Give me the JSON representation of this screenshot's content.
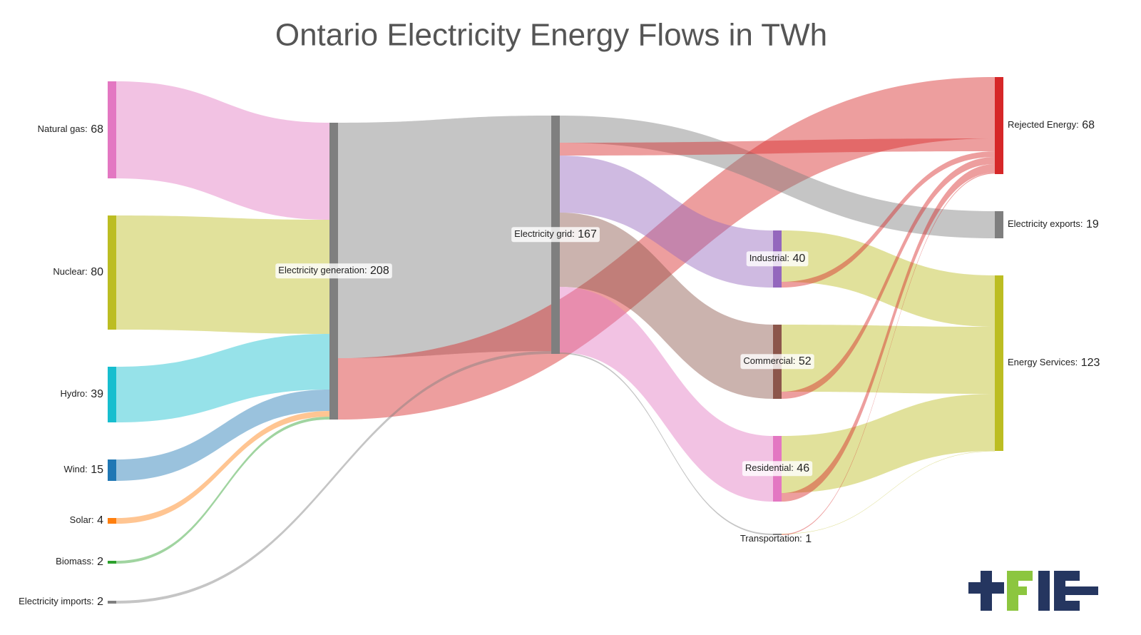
{
  "chart_data": {
    "type": "sankey",
    "title": "Ontario Electricity Energy Flows in TWh",
    "nodes": [
      {
        "label": "Natural gas:",
        "value": 68,
        "color": "#e377c2"
      },
      {
        "label": "Nuclear:",
        "value": 80,
        "color": "#bcbd22"
      },
      {
        "label": "Hydro:",
        "value": 39,
        "color": "#17becf"
      },
      {
        "label": "Wind:",
        "value": 15,
        "color": "#1f77b4"
      },
      {
        "label": "Solar:",
        "value": 4,
        "color": "#ff7f0e"
      },
      {
        "label": "Biomass:",
        "value": 2,
        "color": "#2ca02c"
      },
      {
        "label": "Electricity imports:",
        "value": 2,
        "color": "#7f7f7f"
      },
      {
        "label": "Electricity generation:",
        "value": 208,
        "color": "#7f7f7f"
      },
      {
        "label": "Electricity grid:",
        "value": 167,
        "color": "#7f7f7f"
      },
      {
        "label": "Industrial:",
        "value": 40,
        "color": "#9467bd"
      },
      {
        "label": "Commercial:",
        "value": 52,
        "color": "#8c564b"
      },
      {
        "label": "Residential:",
        "value": 46,
        "color": "#e377c2"
      },
      {
        "label": "Transportation:",
        "value": 1,
        "color": "#7f7f7f"
      },
      {
        "label": "Rejected Energy:",
        "value": 68,
        "color": "#d62728"
      },
      {
        "label": "Electricity exports:",
        "value": 19,
        "color": "#7f7f7f"
      },
      {
        "label": "Energy Services:",
        "value": 123,
        "color": "#bcbd22"
      }
    ],
    "links": [
      {
        "source": 0,
        "target": 7,
        "value": 68,
        "color": "#e377c2"
      },
      {
        "source": 1,
        "target": 7,
        "value": 80,
        "color": "#bcbd22"
      },
      {
        "source": 2,
        "target": 7,
        "value": 39,
        "color": "#17becf"
      },
      {
        "source": 3,
        "target": 7,
        "value": 15,
        "color": "#1f77b4"
      },
      {
        "source": 4,
        "target": 7,
        "value": 4,
        "color": "#ff7f0e"
      },
      {
        "source": 5,
        "target": 7,
        "value": 2,
        "color": "#2ca02c"
      },
      {
        "source": 7,
        "target": 8,
        "value": 165,
        "color": "#7f7f7f"
      },
      {
        "source": 7,
        "target": 13,
        "value": 43,
        "color": "#d62728"
      },
      {
        "source": 6,
        "target": 8,
        "value": 2,
        "color": "#7f7f7f"
      },
      {
        "source": 8,
        "target": 14,
        "value": 19,
        "color": "#7f7f7f"
      },
      {
        "source": 8,
        "target": 13,
        "value": 9,
        "color": "#d62728"
      },
      {
        "source": 8,
        "target": 9,
        "value": 40,
        "color": "#9467bd"
      },
      {
        "source": 8,
        "target": 10,
        "value": 52,
        "color": "#8c564b"
      },
      {
        "source": 8,
        "target": 11,
        "value": 46,
        "color": "#e377c2"
      },
      {
        "source": 8,
        "target": 12,
        "value": 1,
        "color": "#7f7f7f"
      },
      {
        "source": 9,
        "target": 15,
        "value": 36,
        "color": "#bcbd22"
      },
      {
        "source": 9,
        "target": 13,
        "value": 4,
        "color": "#d62728"
      },
      {
        "source": 10,
        "target": 15,
        "value": 47,
        "color": "#bcbd22"
      },
      {
        "source": 10,
        "target": 13,
        "value": 5,
        "color": "#d62728"
      },
      {
        "source": 11,
        "target": 15,
        "value": 40,
        "color": "#bcbd22"
      },
      {
        "source": 11,
        "target": 13,
        "value": 6,
        "color": "#d62728"
      },
      {
        "source": 12,
        "target": 15,
        "value": 0.3,
        "color": "#bcbd22"
      },
      {
        "source": 12,
        "target": 13,
        "value": 0.7,
        "color": "#d62728"
      }
    ]
  }
}
